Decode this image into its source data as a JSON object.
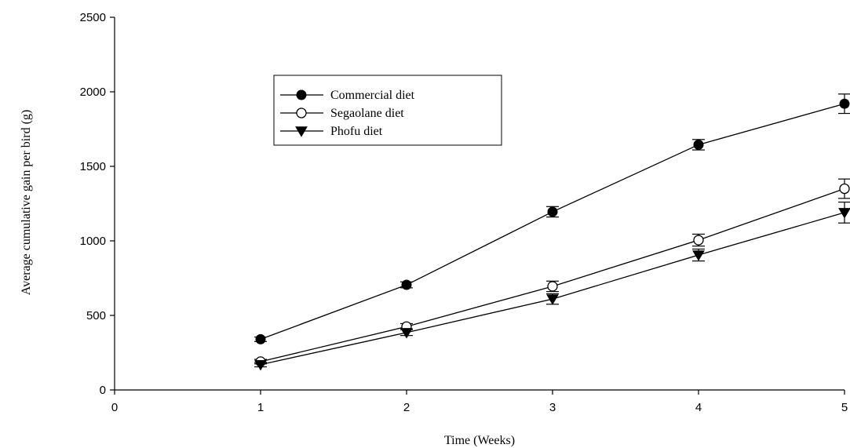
{
  "chart_data": {
    "type": "line",
    "title": "",
    "xlabel": "Time (Weeks)",
    "ylabel": "Average cumulative gain per bird (g)",
    "xlim": [
      0,
      5
    ],
    "ylim": [
      0,
      2500
    ],
    "x_ticks": [
      0,
      1,
      2,
      3,
      4,
      5
    ],
    "y_ticks": [
      0,
      500,
      1000,
      1500,
      2000,
      2500
    ],
    "grid": false,
    "legend_position": "upper-left",
    "x": [
      1,
      2,
      3,
      4,
      5
    ],
    "series": [
      {
        "name": "Commercial diet",
        "marker": "filled-circle",
        "values": [
          340,
          705,
          1195,
          1645,
          1920
        ],
        "errors": [
          15,
          20,
          35,
          35,
          65
        ]
      },
      {
        "name": "Segaolane diet",
        "marker": "open-circle",
        "values": [
          190,
          425,
          695,
          1005,
          1350
        ],
        "errors": [
          15,
          20,
          35,
          40,
          65
        ]
      },
      {
        "name": "Phofu diet",
        "marker": "filled-triangle-down",
        "values": [
          170,
          385,
          610,
          905,
          1190
        ],
        "errors": [
          15,
          20,
          35,
          40,
          70
        ]
      }
    ]
  }
}
